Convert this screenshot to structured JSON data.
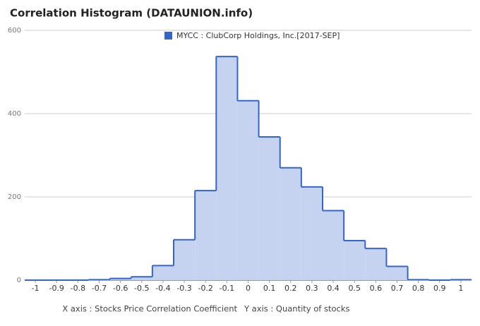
{
  "chart_data": {
    "type": "histogram",
    "title": "Correlation Histogram (DATAUNION.info)",
    "series": [
      {
        "name": "MYCC : ClubCorp Holdings, Inc.[2017-SEP]",
        "color": "#3366cc",
        "fill": "#c5d3f0",
        "bins": [
          -1.05,
          -0.95,
          -0.85,
          -0.75,
          -0.65,
          -0.55,
          -0.45,
          -0.35,
          -0.25,
          -0.15,
          -0.05,
          0.05,
          0.15,
          0.25,
          0.35,
          0.45,
          0.55,
          0.65,
          0.75,
          0.85,
          0.95,
          1.05
        ],
        "values": [
          0,
          0,
          0,
          1,
          4,
          8,
          35,
          97,
          215,
          537,
          431,
          344,
          270,
          224,
          167,
          95,
          76,
          33,
          1,
          0,
          1
        ]
      }
    ],
    "xlim": [
      -1.05,
      1.05
    ],
    "xticks": [
      -1,
      -0.9,
      -0.8,
      -0.7,
      -0.6,
      -0.5,
      -0.4,
      -0.3,
      -0.2,
      -0.1,
      0,
      0.1,
      0.2,
      0.3,
      0.4,
      0.5,
      0.6,
      0.7,
      0.8,
      0.9,
      1
    ],
    "ylim": [
      0,
      600
    ],
    "yticks": [
      0,
      200,
      400,
      600
    ],
    "grid": true,
    "legend": "top",
    "xlabel": "X axis : Stocks Price Correlation Coefficient",
    "ylabel": "Y axis : Quantity of stocks"
  }
}
